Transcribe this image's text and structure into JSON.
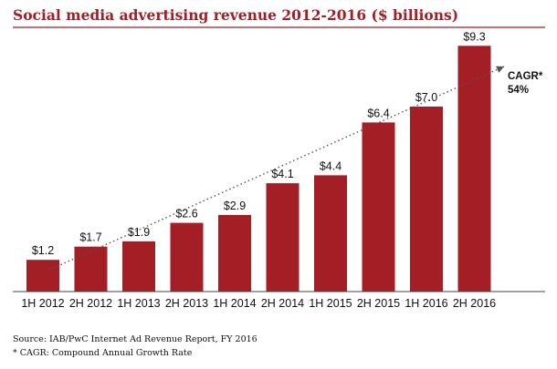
{
  "chart_data": {
    "type": "bar",
    "title": "Social media advertising revenue 2012-2016 ($ billions)",
    "categories": [
      "1H 2012",
      "2H 2012",
      "1H 2013",
      "2H 2013",
      "1H 2014",
      "2H 2014",
      "1H 2015",
      "2H 2015",
      "1H 2016",
      "2H 2016"
    ],
    "values": [
      1.2,
      1.7,
      1.9,
      2.6,
      2.9,
      4.1,
      4.4,
      6.4,
      7.0,
      9.3
    ],
    "value_labels": [
      "$1.2",
      "$1.7",
      "$1.9",
      "$2.6",
      "$2.9",
      "$4.1",
      "$4.4",
      "$6.4",
      "$7.0",
      "$9.3"
    ],
    "ylim": [
      0,
      10
    ],
    "grid": false,
    "trend_annotation": {
      "label": "CAGR*",
      "value": "54%"
    },
    "colors": {
      "bars": "#a31e25",
      "title": "#a31e25",
      "trend": "#555555"
    }
  },
  "footer": {
    "source": "Source: IAB/PwC Internet Ad Revenue Report, FY 2016",
    "note": "* CAGR: Compound Annual Growth Rate"
  }
}
